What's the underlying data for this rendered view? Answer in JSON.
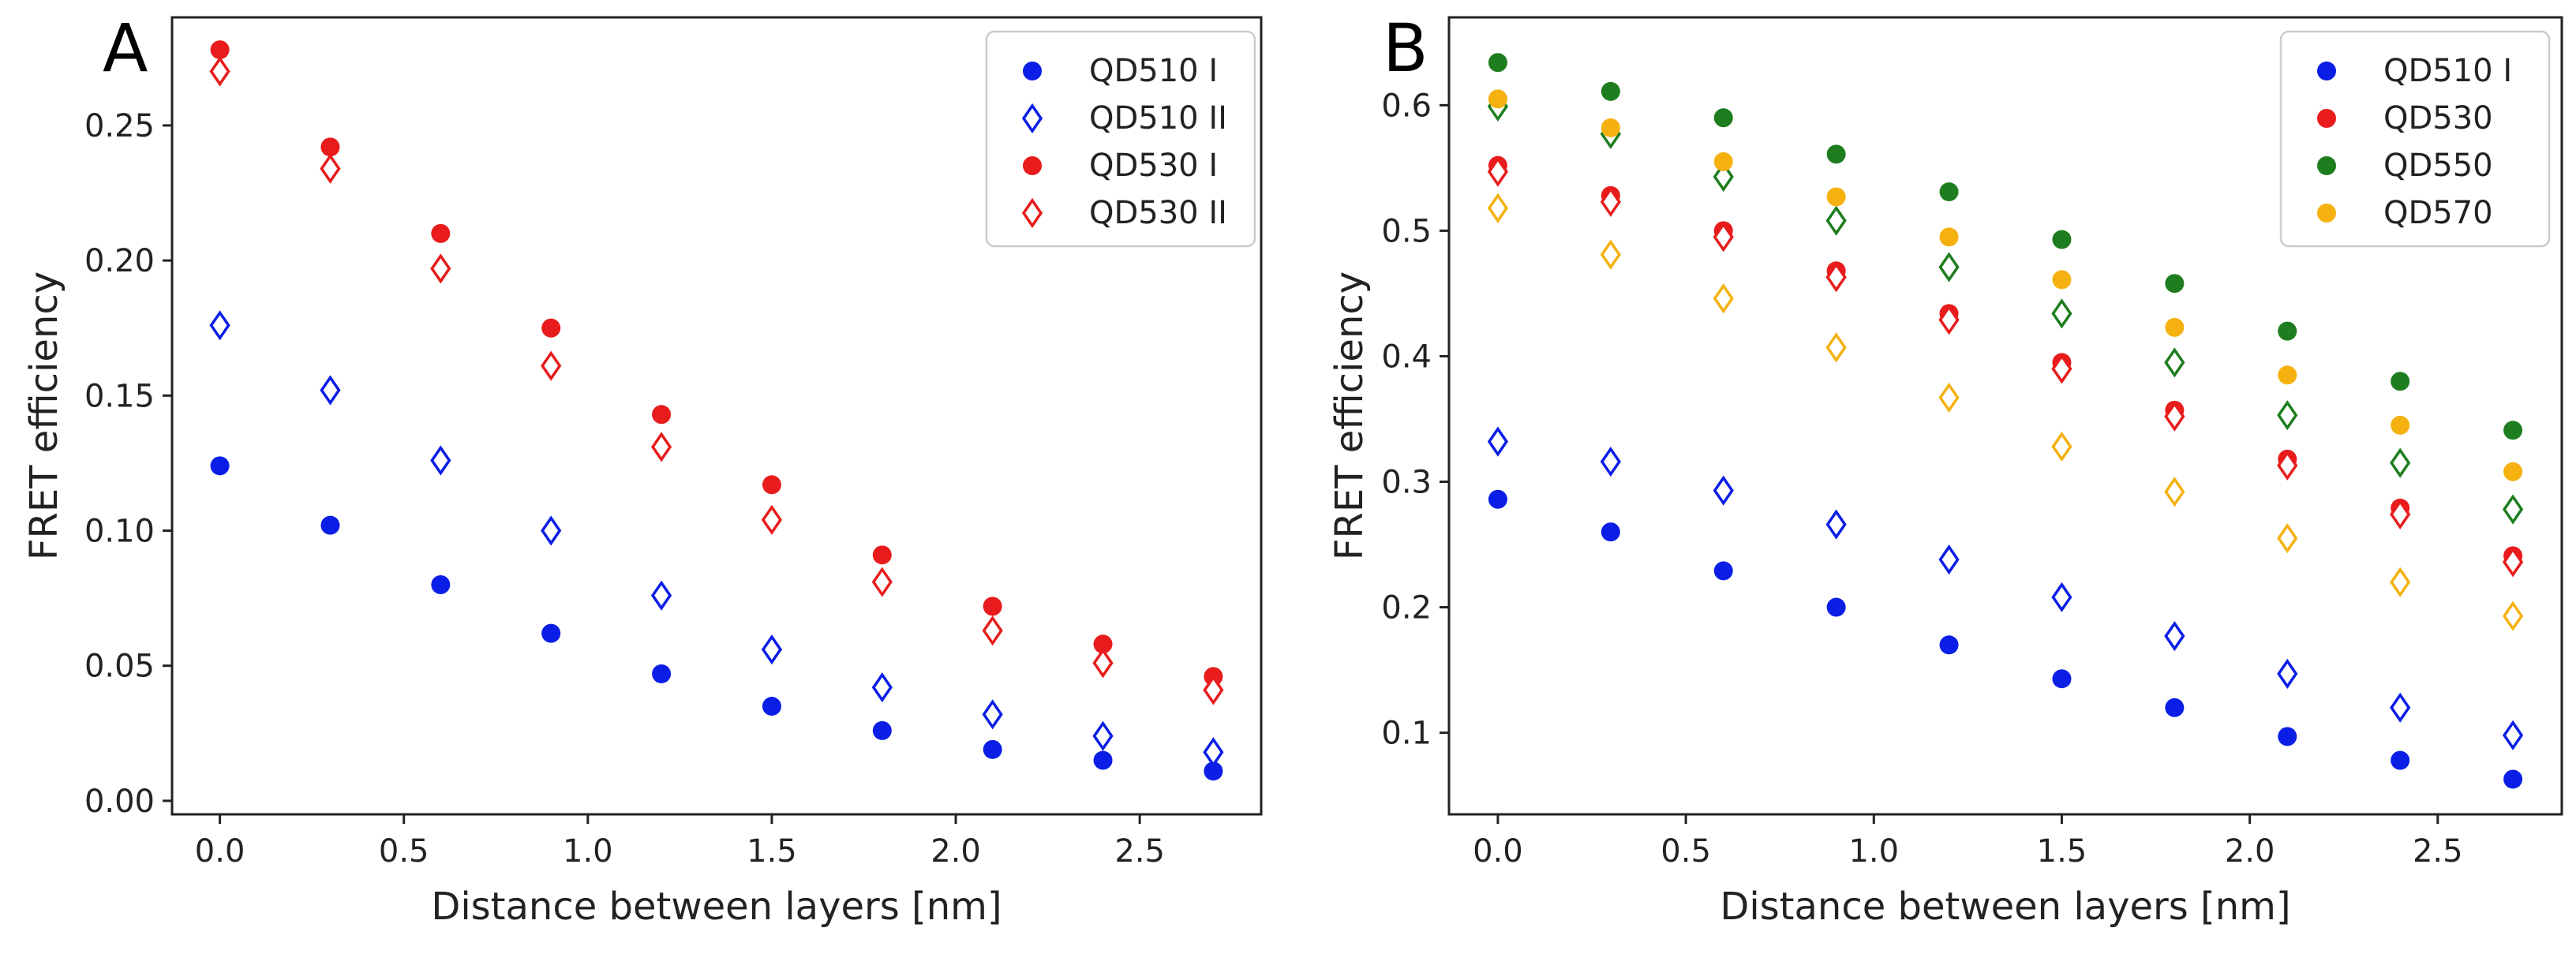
{
  "figure": {
    "description_note": "Two-panel scatter plot of FRET efficiency vs distance between layers"
  },
  "chart_data": [
    {
      "type": "scatter",
      "panel_label": "A",
      "title": "",
      "xlabel": "Distance between layers [nm]",
      "ylabel": "FRET efficiency",
      "xlim": [
        -0.13,
        2.83
      ],
      "ylim": [
        -0.005,
        0.29
      ],
      "xticks": [
        0.0,
        0.5,
        1.0,
        1.5,
        2.0,
        2.5
      ],
      "xtick_labels": [
        "0.0",
        "0.5",
        "1.0",
        "1.5",
        "2.0",
        "2.5"
      ],
      "yticks": [
        0.0,
        0.05,
        0.1,
        0.15,
        0.2,
        0.25
      ],
      "ytick_labels": [
        "0.00",
        "0.05",
        "0.10",
        "0.15",
        "0.20",
        "0.25"
      ],
      "grid": false,
      "legend_position": "top-right",
      "x": [
        0.0,
        0.3,
        0.6,
        0.9,
        1.2,
        1.5,
        1.8,
        2.1,
        2.4,
        2.7
      ],
      "series": [
        {
          "name": "QD510 I",
          "marker": "filled-circle",
          "color": "#0a1ee6",
          "values": [
            0.124,
            0.102,
            0.08,
            0.062,
            0.047,
            0.035,
            0.026,
            0.019,
            0.015,
            0.011
          ]
        },
        {
          "name": "QD510 II",
          "marker": "open-diamond",
          "color": "#0a1ee6",
          "values": [
            0.176,
            0.152,
            0.126,
            0.1,
            0.076,
            0.056,
            0.042,
            0.032,
            0.024,
            0.018
          ]
        },
        {
          "name": "QD530 I",
          "marker": "filled-circle",
          "color": "#e81c1c",
          "values": [
            0.278,
            0.242,
            0.21,
            0.175,
            0.143,
            0.117,
            0.091,
            0.072,
            0.058,
            0.046
          ]
        },
        {
          "name": "QD530 II",
          "marker": "open-diamond",
          "color": "#e81c1c",
          "values": [
            0.27,
            0.234,
            0.197,
            0.161,
            0.131,
            0.104,
            0.081,
            0.063,
            0.051,
            0.041
          ]
        }
      ],
      "legend": [
        {
          "label": "QD510 I",
          "marker": "filled-circle",
          "color": "#0a1ee6"
        },
        {
          "label": "QD510 II",
          "marker": "open-diamond",
          "color": "#0a1ee6"
        },
        {
          "label": "QD530 I",
          "marker": "filled-circle",
          "color": "#e81c1c"
        },
        {
          "label": "QD530 II",
          "marker": "open-diamond",
          "color": "#e81c1c"
        }
      ]
    },
    {
      "type": "scatter",
      "panel_label": "B",
      "title": "",
      "xlabel": "Distance between layers [nm]",
      "ylabel": "FRET efficiency",
      "xlim": [
        -0.13,
        2.83
      ],
      "ylim": [
        0.035,
        0.67
      ],
      "xticks": [
        0.0,
        0.5,
        1.0,
        1.5,
        2.0,
        2.5
      ],
      "xtick_labels": [
        "0.0",
        "0.5",
        "1.0",
        "1.5",
        "2.0",
        "2.5"
      ],
      "yticks": [
        0.1,
        0.2,
        0.3,
        0.4,
        0.5,
        0.6
      ],
      "ytick_labels": [
        "0.1",
        "0.2",
        "0.3",
        "0.4",
        "0.5",
        "0.6"
      ],
      "grid": false,
      "legend_position": "top-right",
      "x": [
        0.0,
        0.3,
        0.6,
        0.9,
        1.2,
        1.5,
        1.8,
        2.1,
        2.4,
        2.7
      ],
      "series": [
        {
          "name": "QD510 I (filled)",
          "marker": "filled-circle",
          "color": "#0a1ee6",
          "values": [
            0.286,
            0.26,
            0.229,
            0.2,
            0.17,
            0.143,
            0.12,
            0.097,
            0.078,
            0.063
          ]
        },
        {
          "name": "QD510 I (open)",
          "marker": "open-diamond",
          "color": "#0a1ee6",
          "values": [
            0.332,
            0.316,
            0.293,
            0.266,
            0.238,
            0.208,
            0.177,
            0.147,
            0.12,
            0.098
          ]
        },
        {
          "name": "QD530 (filled)",
          "marker": "filled-circle",
          "color": "#e81c1c",
          "values": [
            0.552,
            0.528,
            0.5,
            0.468,
            0.434,
            0.395,
            0.357,
            0.318,
            0.279,
            0.241
          ]
        },
        {
          "name": "QD530 (open)",
          "marker": "open-diamond",
          "color": "#e81c1c",
          "values": [
            0.547,
            0.523,
            0.495,
            0.463,
            0.429,
            0.39,
            0.352,
            0.313,
            0.274,
            0.236
          ]
        },
        {
          "name": "QD550 (filled)",
          "marker": "filled-circle",
          "color": "#1e7d1e",
          "values": [
            0.634,
            0.611,
            0.59,
            0.561,
            0.531,
            0.493,
            0.458,
            0.42,
            0.38,
            0.341
          ]
        },
        {
          "name": "QD550 (open)",
          "marker": "open-diamond",
          "color": "#1e7d1e",
          "values": [
            0.599,
            0.577,
            0.543,
            0.508,
            0.471,
            0.434,
            0.395,
            0.353,
            0.315,
            0.278
          ]
        },
        {
          "name": "QD570 (filled)",
          "marker": "filled-circle",
          "color": "#f5b10f",
          "values": [
            0.605,
            0.582,
            0.555,
            0.527,
            0.495,
            0.461,
            0.423,
            0.385,
            0.345,
            0.308
          ]
        },
        {
          "name": "QD570 (open)",
          "marker": "open-diamond",
          "color": "#f5b10f",
          "values": [
            0.518,
            0.481,
            0.446,
            0.407,
            0.367,
            0.328,
            0.292,
            0.255,
            0.22,
            0.193
          ]
        }
      ],
      "legend": [
        {
          "label": "QD510 I",
          "marker": "filled-circle",
          "color": "#0a1ee6"
        },
        {
          "label": "QD530",
          "marker": "filled-circle",
          "color": "#e81c1c"
        },
        {
          "label": "QD550",
          "marker": "filled-circle",
          "color": "#1e7d1e"
        },
        {
          "label": "QD570",
          "marker": "filled-circle",
          "color": "#f5b10f"
        }
      ]
    }
  ]
}
